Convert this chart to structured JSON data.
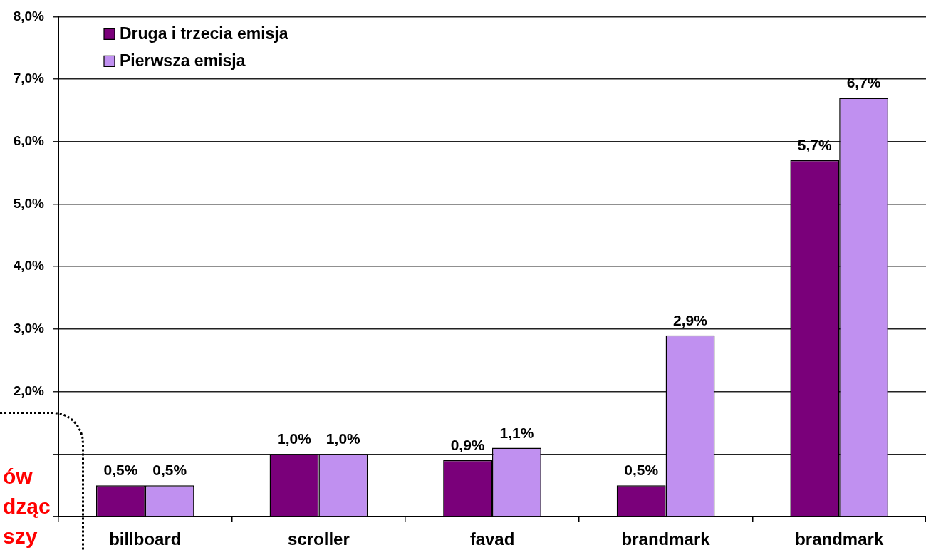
{
  "chart_data": {
    "type": "bar",
    "categories": [
      "billboard",
      "scroller",
      "favad",
      "brandmark",
      "brandmark"
    ],
    "series": [
      {
        "name": "Druga i trzecia emisja",
        "color": "#7a007a",
        "values": [
          0.5,
          1.0,
          0.9,
          0.5,
          5.7
        ],
        "value_labels": [
          "0,5%",
          "1,0%",
          "0,9%",
          "0,5%",
          "5,7%"
        ]
      },
      {
        "name": "Pierwsza emisja",
        "color": "#c090f0",
        "values": [
          0.5,
          1.0,
          1.1,
          2.9,
          6.7
        ],
        "value_labels": [
          "0,5%",
          "1,0%",
          "1,1%",
          "2,9%",
          "6,7%"
        ]
      }
    ],
    "ylim": [
      0,
      8
    ],
    "yticks": [
      {
        "value": 0,
        "label": null
      },
      {
        "value": 1,
        "label": null
      },
      {
        "value": 2,
        "label": "2,0%"
      },
      {
        "value": 3,
        "label": "3,0%"
      },
      {
        "value": 4,
        "label": "4,0%"
      },
      {
        "value": 5,
        "label": "5,0%"
      },
      {
        "value": 6,
        "label": "6,0%"
      },
      {
        "value": 7,
        "label": "7,0%"
      },
      {
        "value": 8,
        "label": "8,0%"
      }
    ],
    "grid": "y",
    "legend": "top left",
    "annotations": [
      "ów",
      "dząc",
      "szy"
    ]
  }
}
